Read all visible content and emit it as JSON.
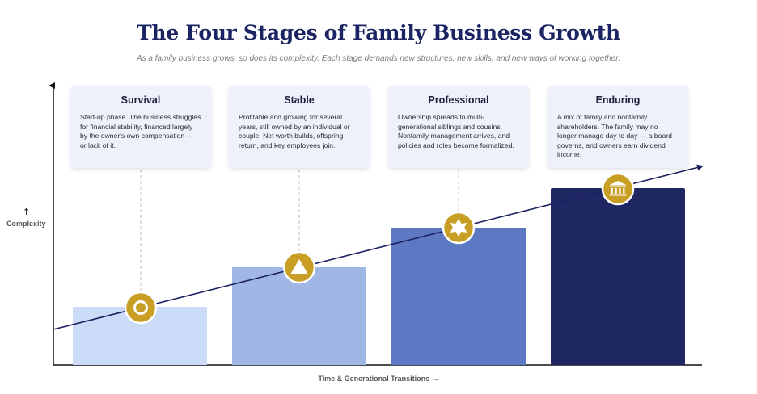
{
  "header": {
    "title": "The Four Stages of Family Business Growth",
    "subtitle": "As a family business grows, so does its complexity. Each stage demands new structures, new skills, and new ways of working together."
  },
  "axes": {
    "y_label": "Complexity",
    "y_arrow": "↑",
    "x_label": "Time & Generational Transitions →"
  },
  "stages": [
    {
      "name": "Survival",
      "description": "Start-up phase. The business struggles for financial stability, financed largely by the owner's own compensation — or lack of it.",
      "color": "#ccdbf8",
      "icon": "circle-target-icon",
      "level": 1
    },
    {
      "name": "Stable",
      "description": "Profitable and growing for several years, still owned by an individual or couple. Net worth builds, offspring return, and key employees join.",
      "color": "#a0b7e6",
      "icon": "triangle-icon",
      "level": 2
    },
    {
      "name": "Professional",
      "description": "Ownership spreads to multi-generational siblings and cousins. Nonfamily management arrives, and policies and roles become formalized.",
      "color": "#5d79c4",
      "icon": "star-badge-icon",
      "level": 3
    },
    {
      "name": "Enduring",
      "description": "A mix of family and nonfamily shareholders. The family may no longer manage day to day — a board governs, and owners earn dividend income.",
      "color": "#1f2762",
      "icon": "institution-icon",
      "level": 4
    }
  ],
  "colors": {
    "title": "#1b2462",
    "icon_gold": "#c99e25",
    "trend_line": "#1b2060",
    "card_bg": "#eef1fb"
  }
}
